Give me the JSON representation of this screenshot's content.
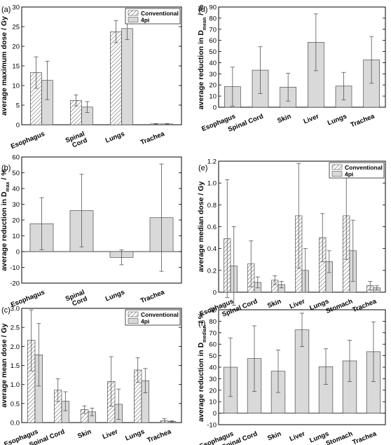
{
  "colors": {
    "bar_fill": "#d9d9d9",
    "hatch": "#666666",
    "axis": "#000000",
    "errorbar": "#555555"
  },
  "chart_data": [
    {
      "panel": "(a)",
      "type": "bar",
      "ylabel": "average maximum dose / Gy",
      "categories": [
        "Esophagus",
        "Spinal\nCord",
        "Lungs",
        "Trachea"
      ],
      "ylim": [
        0,
        30
      ],
      "yticks": [
        0,
        5,
        10,
        15,
        20,
        25,
        30
      ],
      "legend": "top-right",
      "series": [
        {
          "name": "Conventional",
          "pattern": "hatch",
          "values": [
            13.3,
            6.2,
            23.7,
            0.2
          ],
          "errors": [
            4.0,
            1.4,
            2.8,
            0.1
          ]
        },
        {
          "name": "4pi",
          "pattern": "solid",
          "values": [
            11.3,
            4.5,
            24.5,
            0.2
          ],
          "errors": [
            4.9,
            1.4,
            2.8,
            0.1
          ]
        }
      ]
    },
    {
      "panel": "(b)",
      "type": "bar",
      "ylabel": "average reduction in D",
      "ylabel_sub": "max",
      "ylabel_suffix": " / %",
      "categories": [
        "Esophagus",
        "Spinal\nCord",
        "Lungs",
        "Trachea"
      ],
      "ylim": [
        -20,
        60
      ],
      "yticks": [
        -20,
        -10,
        0,
        10,
        20,
        30,
        40,
        50,
        60
      ],
      "series": [
        {
          "pattern": "solid",
          "values": [
            17.7,
            26.0,
            -3.7,
            21.5
          ],
          "errors": [
            16.5,
            23.0,
            4.7,
            34.0
          ]
        }
      ]
    },
    {
      "panel": "(c)",
      "type": "bar",
      "ylabel": "average mean dose / Gy",
      "categories": [
        "Esophagus",
        "Spinal Cord",
        "Skin",
        "Liver",
        "Lungs",
        "Trachea"
      ],
      "ylim": [
        0,
        3.0
      ],
      "yticks": [
        "0.0",
        "0.5",
        "1.0",
        "1.5",
        "2.0",
        "2.5",
        "3.0"
      ],
      "legend": "top-right",
      "series": [
        {
          "name": "Conventional",
          "pattern": "hatch",
          "values": [
            2.16,
            0.85,
            0.34,
            1.08,
            1.38,
            0.05
          ],
          "errors": [
            0.8,
            0.3,
            0.1,
            0.65,
            0.32,
            0.05
          ]
        },
        {
          "name": "4pi",
          "pattern": "solid",
          "values": [
            1.78,
            0.56,
            0.28,
            0.48,
            1.1,
            0.03
          ],
          "errors": [
            0.82,
            0.25,
            0.1,
            0.4,
            0.32,
            0.02
          ]
        }
      ]
    },
    {
      "panel": "(d)",
      "type": "bar",
      "ylabel": "average reduction in D",
      "ylabel_sub": "mean",
      "ylabel_suffix": " / %",
      "categories": [
        "Esophagus",
        "Spinal Cord",
        "Skin",
        "Liver",
        "Lungs",
        "Trachea"
      ],
      "ylim": [
        0,
        90
      ],
      "yticks": [
        0,
        10,
        20,
        30,
        40,
        50,
        60,
        70,
        80,
        90
      ],
      "series": [
        {
          "pattern": "solid",
          "values": [
            18.5,
            33.3,
            18.0,
            58.3,
            19.0,
            42.5
          ],
          "errors": [
            17.5,
            21.0,
            12.5,
            25.5,
            12.3,
            21.0
          ]
        }
      ]
    },
    {
      "panel": "(e)",
      "type": "bar",
      "ylabel": "average median dose / Gy",
      "categories": [
        "Esophagus",
        "Spinal Cord",
        "Skin",
        "Liver",
        "Lungs",
        "Stomach",
        "Trachea"
      ],
      "ylim": [
        0,
        1.2
      ],
      "yticks": [
        "0",
        "0.2",
        "0.4",
        "0.6",
        "0.8",
        "1.0",
        "1.2"
      ],
      "legend": "top-right",
      "series": [
        {
          "name": "Conventional",
          "pattern": "hatch",
          "values": [
            0.49,
            0.26,
            0.11,
            0.7,
            0.5,
            0.7,
            0.06
          ],
          "errors": [
            0.54,
            0.21,
            0.04,
            0.48,
            0.22,
            0.4,
            0.04
          ]
        },
        {
          "name": "4pi",
          "pattern": "solid",
          "values": [
            0.24,
            0.09,
            0.07,
            0.2,
            0.28,
            0.38,
            0.04
          ],
          "errors": [
            0.36,
            0.05,
            0.03,
            0.2,
            0.1,
            0.28,
            0.02
          ]
        }
      ]
    },
    {
      "panel": "(f)",
      "type": "bar",
      "ylabel": "average reduction in D",
      "ylabel_sub": "median",
      "ylabel_suffix": " / %",
      "categories": [
        "Esophagus",
        "Spinal Cord",
        "Skin",
        "Liver",
        "Lungs",
        "Stomach",
        "Trachea"
      ],
      "ylim": [
        -10,
        90
      ],
      "yticks": [
        -10,
        0,
        10,
        20,
        30,
        40,
        50,
        60,
        70,
        80,
        90
      ],
      "series": [
        {
          "pattern": "solid",
          "values": [
            40,
            47.5,
            36.5,
            72.5,
            40.5,
            45.5,
            53.5
          ],
          "errors": [
            25.5,
            28.5,
            18.5,
            14.5,
            15.5,
            18.0,
            26.0
          ]
        }
      ]
    }
  ]
}
